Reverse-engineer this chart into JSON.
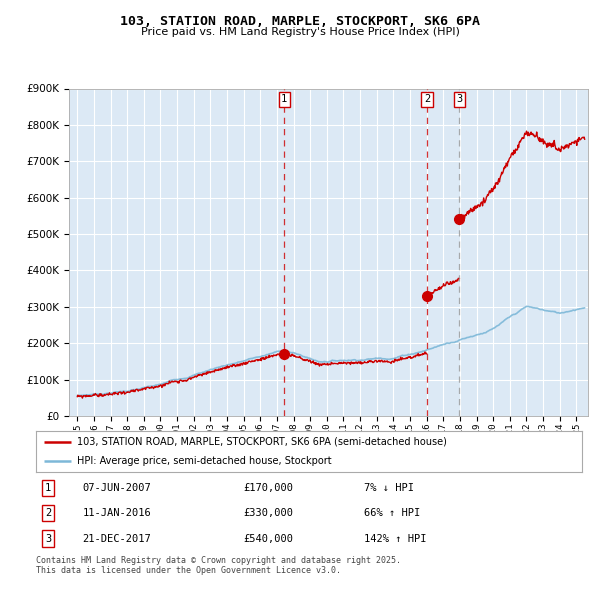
{
  "title1": "103, STATION ROAD, MARPLE, STOCKPORT, SK6 6PA",
  "title2": "Price paid vs. HM Land Registry's House Price Index (HPI)",
  "legend_line1": "103, STATION ROAD, MARPLE, STOCKPORT, SK6 6PA (semi-detached house)",
  "legend_line2": "HPI: Average price, semi-detached house, Stockport",
  "sale1": {
    "date_num": 2007.44,
    "price": 170000,
    "label": "1",
    "date_str": "07-JUN-2007",
    "pct": "7% ↓ HPI"
  },
  "sale2": {
    "date_num": 2016.03,
    "price": 330000,
    "label": "2",
    "date_str": "11-JAN-2016",
    "pct": "66% ↑ HPI"
  },
  "sale3": {
    "date_num": 2017.97,
    "price": 540000,
    "label": "3",
    "date_str": "21-DEC-2017",
    "pct": "142% ↑ HPI"
  },
  "note": "Contains HM Land Registry data © Crown copyright and database right 2025.\nThis data is licensed under the Open Government Licence v3.0.",
  "bg_color": "#dce9f5",
  "grid_color": "#ffffff",
  "red_line_color": "#cc0000",
  "blue_line_color": "#7db8d8",
  "ylim": [
    0,
    900000
  ],
  "xlim_start": 1994.5,
  "xlim_end": 2025.7,
  "xtick_years": [
    1995,
    1996,
    1997,
    1998,
    1999,
    2000,
    2001,
    2002,
    2003,
    2004,
    2005,
    2006,
    2007,
    2008,
    2009,
    2010,
    2011,
    2012,
    2013,
    2014,
    2015,
    2016,
    2017,
    2018,
    2019,
    2020,
    2021,
    2022,
    2023,
    2024,
    2025
  ],
  "xtick_labels": [
    "1995",
    "1996",
    "1997",
    "1998",
    "1999",
    "2000",
    "2001",
    "2002",
    "2003",
    "2004",
    "2005",
    "2006",
    "2007",
    "2008",
    "2009",
    "2010",
    "2011",
    "2012",
    "2013",
    "2014",
    "2015",
    "2016",
    "2017",
    "2018",
    "2019",
    "2020",
    "2021",
    "2022",
    "2023",
    "2024",
    "2025"
  ]
}
